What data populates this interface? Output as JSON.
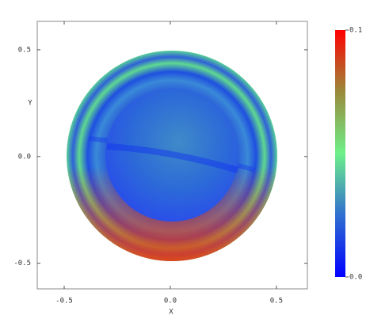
{
  "chart_data": {
    "type": "image",
    "xlabel": "X",
    "ylabel": "Y",
    "xlim": [
      -0.627,
      0.646
    ],
    "ylim": [
      -0.62,
      0.633
    ],
    "xticks": [
      -0.5,
      {
        "value": 0,
        "label": "0.0"
      },
      0.5
    ],
    "yticks": [
      -0.5,
      {
        "value": 0,
        "label": "0.0"
      },
      0.5
    ],
    "grid": false,
    "colorbar": {
      "colors": [
        "#0000ff",
        "#2f6fd0",
        "#6ef08a",
        "#9a8a3a",
        "#ff0000"
      ],
      "lim": [
        0,
        0.1
      ],
      "ticks": [
        {
          "value": 0,
          "label": "0.0"
        },
        0.1
      ]
    }
  }
}
